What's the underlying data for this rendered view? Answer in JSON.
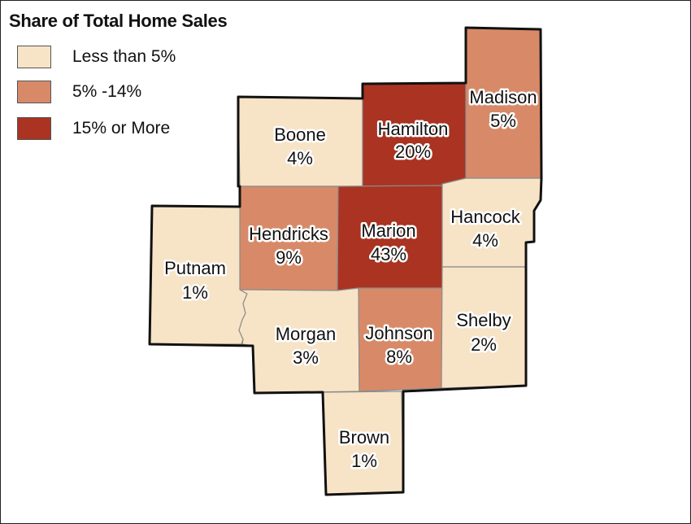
{
  "legend": {
    "title": "Share of Total Home Sales",
    "items": [
      {
        "label": "Less than 5%",
        "color": "#f7e3c6"
      },
      {
        "label": "5% -14%",
        "color": "#d88a68"
      },
      {
        "label": "15% or More",
        "color": "#aa3322"
      }
    ]
  },
  "counties": {
    "boone": {
      "name": "Boone",
      "value": "4%",
      "share_pct": 4,
      "class": "less-than-5"
    },
    "hamilton": {
      "name": "Hamilton",
      "value": "20%",
      "share_pct": 20,
      "class": "15-or-more"
    },
    "madison": {
      "name": "Madison",
      "value": "5%",
      "share_pct": 5,
      "class": "5-14"
    },
    "hendricks": {
      "name": "Hendricks",
      "value": "9%",
      "share_pct": 9,
      "class": "5-14"
    },
    "marion": {
      "name": "Marion",
      "value": "43%",
      "share_pct": 43,
      "class": "15-or-more"
    },
    "hancock": {
      "name": "Hancock",
      "value": "4%",
      "share_pct": 4,
      "class": "less-than-5"
    },
    "putnam": {
      "name": "Putnam",
      "value": "1%",
      "share_pct": 1,
      "class": "less-than-5"
    },
    "morgan": {
      "name": "Morgan",
      "value": "3%",
      "share_pct": 3,
      "class": "less-than-5"
    },
    "johnson": {
      "name": "Johnson",
      "value": "8%",
      "share_pct": 8,
      "class": "5-14"
    },
    "shelby": {
      "name": "Shelby",
      "value": "2%",
      "share_pct": 2,
      "class": "less-than-5"
    },
    "brown": {
      "name": "Brown",
      "value": "1%",
      "share_pct": 1,
      "class": "less-than-5"
    }
  },
  "colors": {
    "light": "#f7e3c6",
    "medium": "#d88a68",
    "dark": "#aa3322",
    "county_border": "#8c8c8c",
    "outline": "#111111"
  }
}
